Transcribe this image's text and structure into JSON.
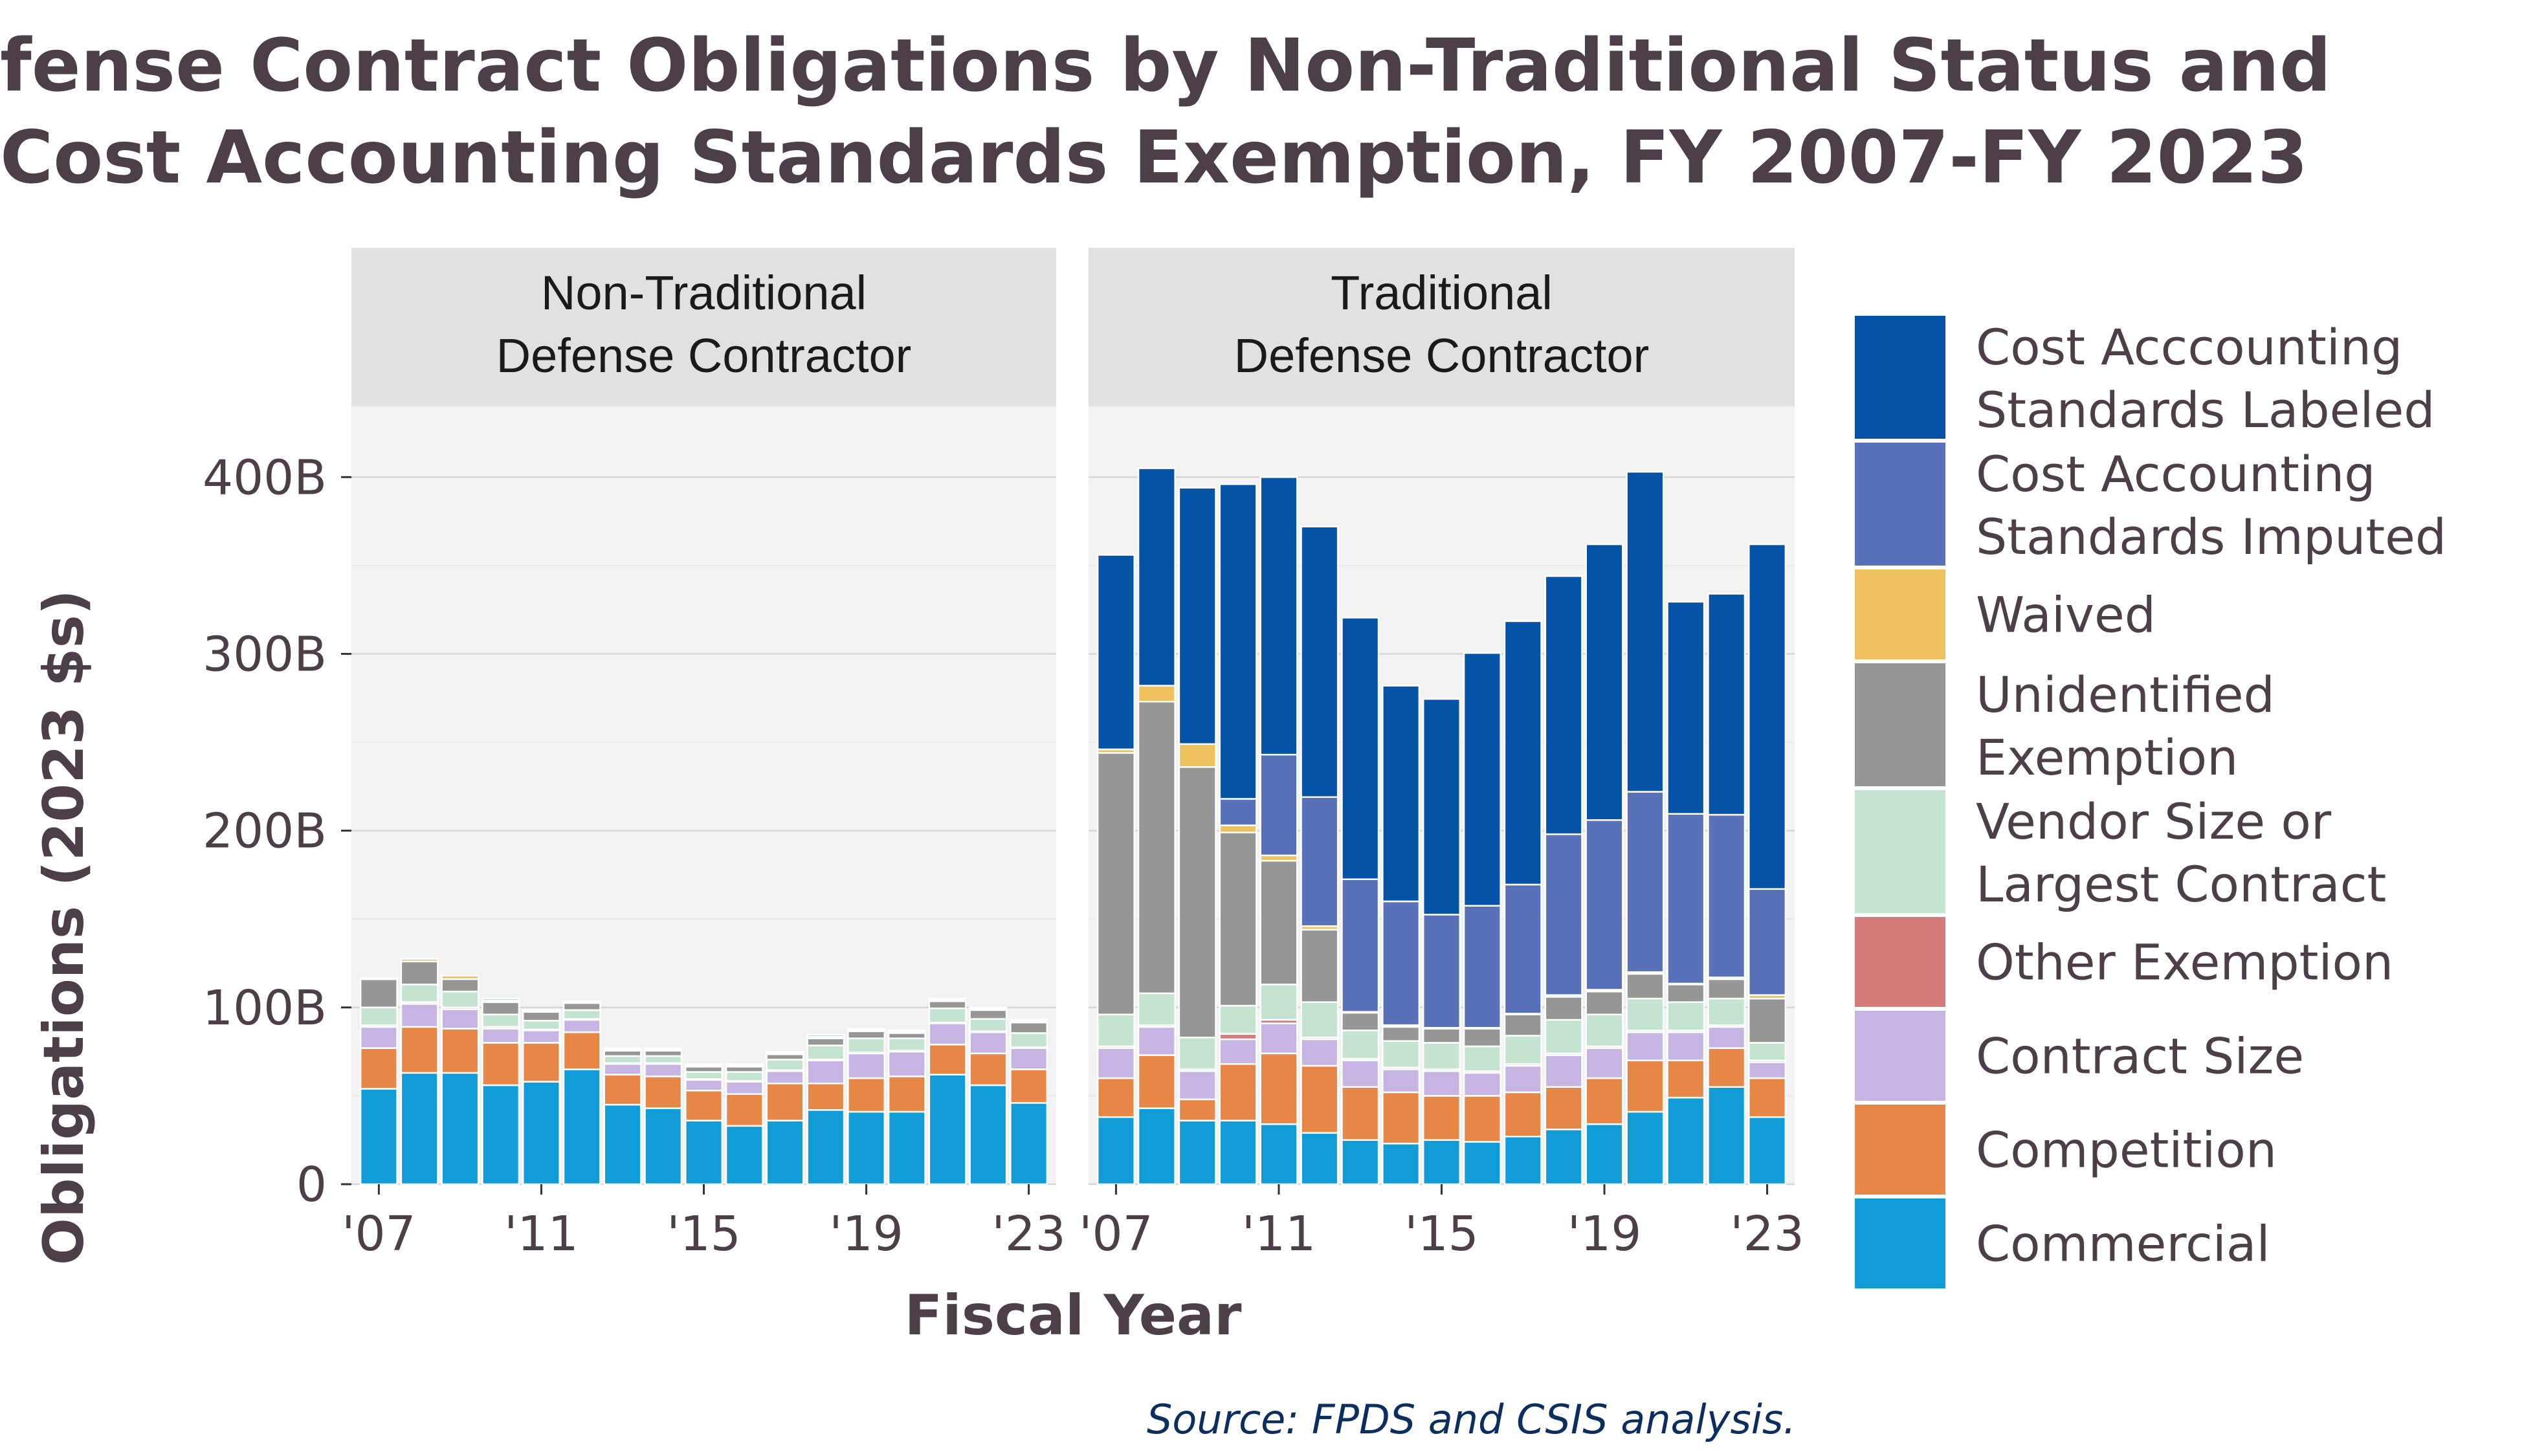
{
  "chart_data": {
    "type": "bar",
    "stacked": true,
    "title_lines": [
      "fense Contract Obligations by Non-Traditional Status and",
      "Cost Accounting Standards Exemption, FY 2007-FY 2023"
    ],
    "xlabel": "Fiscal Year",
    "ylabel": "Obligations (2023 $s)",
    "source": "Source: FPDS and CSIS analysis.",
    "ylim": [
      0,
      400
    ],
    "y_ticks": [
      0,
      100,
      200,
      300,
      400
    ],
    "y_tick_labels": [
      "0",
      "100B",
      "200B",
      "300B",
      "400B"
    ],
    "x": [
      2007,
      2008,
      2009,
      2010,
      2011,
      2012,
      2013,
      2014,
      2015,
      2016,
      2017,
      2018,
      2019,
      2020,
      2021,
      2022,
      2023
    ],
    "x_ticks": [
      2007,
      2011,
      2015,
      2019,
      2023
    ],
    "x_tick_labels": [
      "'07",
      "'11",
      "'15",
      "'19",
      "'23"
    ],
    "grid": true,
    "legend_position": "right",
    "series_names": [
      "Commercial",
      "Competition",
      "Contract Size",
      "Other Exemption",
      "Vendor Size or Largest Contract",
      "Unidentified Exemption",
      "Waived",
      "Cost Accounting Standards Imputed",
      "Cost Acccounting Standards Labeled"
    ],
    "legend_order": [
      8,
      7,
      6,
      5,
      4,
      3,
      2,
      1,
      0
    ],
    "legend_lines": [
      [
        "Commercial"
      ],
      [
        "Competition"
      ],
      [
        "Contract Size"
      ],
      [
        "Other Exemption"
      ],
      [
        "Vendor Size or",
        "Largest Contract"
      ],
      [
        "Unidentified",
        "Exemption"
      ],
      [
        "Waived"
      ],
      [
        "Cost Accounting",
        "Standards Imputed"
      ],
      [
        "Cost Acccounting",
        "Standards Labeled"
      ]
    ],
    "colors": [
      "#119cd8",
      "#e68747",
      "#c6b5e3",
      "#d57b7b",
      "#c4e4d1",
      "#969696",
      "#efc15f",
      "#5871b9",
      "#0453a6"
    ],
    "panels": [
      {
        "label_lines": [
          "Non-Traditional",
          "Defense Contractor"
        ],
        "series": [
          {
            "name": "Commercial",
            "values": [
              54,
              63,
              63,
              56,
              58,
              65,
              45,
              43,
              36,
              33,
              36,
              42,
              41,
              41,
              62,
              56,
              46
            ]
          },
          {
            "name": "Competition",
            "values": [
              23,
              26,
              25,
              24,
              22,
              21,
              17,
              18,
              17,
              18,
              21,
              15,
              19,
              20,
              17,
              18,
              19
            ]
          },
          {
            "name": "Contract Size",
            "values": [
              12,
              13,
              11,
              8,
              7,
              7,
              6,
              7,
              6,
              7,
              7,
              13,
              14,
              14,
              12,
              12,
              12
            ]
          },
          {
            "name": "Other Exemption",
            "values": [
              1,
              1,
              1,
              1,
              0.5,
              0.5,
              0.5,
              0.5,
              0.5,
              0.5,
              0.5,
              0.5,
              0.5,
              0.5,
              0.5,
              0.5,
              0.5
            ]
          },
          {
            "name": "Vendor Size or Largest Contract",
            "values": [
              10,
              10,
              9,
              7,
              5,
              5,
              4,
              4,
              4,
              5,
              6,
              8,
              8,
              7,
              8,
              7,
              8
            ]
          },
          {
            "name": "Unidentified Exemption",
            "values": [
              16,
              13,
              7,
              7,
              5,
              4,
              3,
              3,
              3,
              3,
              3,
              4,
              4,
              3,
              4,
              5,
              6
            ]
          },
          {
            "name": "Waived",
            "values": [
              0.5,
              1.5,
              2,
              1,
              0.5,
              0.5,
              0.5,
              0.5,
              0.5,
              0.5,
              0.5,
              0.5,
              0.5,
              0.5,
              0.5,
              0.5,
              0.5
            ]
          },
          {
            "name": "Cost Accounting Standards Imputed",
            "values": [
              0,
              0,
              0,
              0,
              0,
              0,
              0.5,
              0.5,
              0.5,
              0.5,
              0.5,
              0.5,
              0.5,
              0.5,
              0.5,
              0.5,
              0.5
            ]
          },
          {
            "name": "Cost Acccounting Standards Labeled",
            "values": [
              0,
              0,
              0,
              1,
              0.5,
              0.5,
              0.5,
              0.5,
              0.5,
              0.5,
              0.5,
              1,
              0.5,
              0.5,
              0.5,
              0.5,
              0.5
            ]
          }
        ]
      },
      {
        "label_lines": [
          "Traditional",
          "Defense Contractor"
        ],
        "series": [
          {
            "name": "Commercial",
            "values": [
              38,
              43,
              36,
              36,
              34,
              29,
              25,
              23,
              25,
              24,
              27,
              31,
              34,
              41,
              49,
              55,
              38
            ]
          },
          {
            "name": "Competition",
            "values": [
              22,
              30,
              12,
              32,
              40,
              38,
              30,
              29,
              25,
              26,
              25,
              24,
              26,
              29,
              21,
              22,
              22
            ]
          },
          {
            "name": "Contract Size",
            "values": [
              17,
              16,
              16,
              14,
              17,
              15,
              15,
              13,
              14,
              13,
              15,
              18,
              17,
              16,
              16,
              12,
              9
            ]
          },
          {
            "name": "Other Exemption",
            "values": [
              1,
              1,
              1,
              3,
              2,
              1,
              1,
              1,
              1,
              1,
              1,
              1,
              1,
              1,
              1,
              1,
              1
            ]
          },
          {
            "name": "Vendor Size or Largest Contract",
            "values": [
              18,
              18,
              18,
              16,
              20,
              20,
              16,
              15,
              15,
              14,
              16,
              19,
              18,
              18,
              16,
              15,
              10
            ]
          },
          {
            "name": "Unidentified Exemption",
            "values": [
              148,
              165,
              153,
              98,
              70,
              41,
              10,
              8,
              8,
              10,
              12,
              13,
              13,
              14,
              10,
              11,
              25
            ]
          },
          {
            "name": "Waived",
            "values": [
              2,
              9,
              13,
              4,
              3,
              2,
              0.5,
              1,
              0.5,
              0.5,
              0.5,
              1,
              1,
              1,
              0.5,
              1,
              2
            ]
          },
          {
            "name": "Cost Accounting Standards Imputed",
            "values": [
              0,
              0,
              0,
              15,
              57,
              73,
              75,
              70,
              64,
              69,
              73,
              91,
              96,
              102,
              96,
              92,
              60
            ]
          },
          {
            "name": "Cost Acccounting Standards Labeled",
            "values": [
              110,
              123,
              145,
              178,
              157,
              153,
              148,
              122,
              122,
              143,
              149,
              146,
              156,
              181,
              120,
              125,
              195
            ]
          }
        ]
      }
    ]
  }
}
